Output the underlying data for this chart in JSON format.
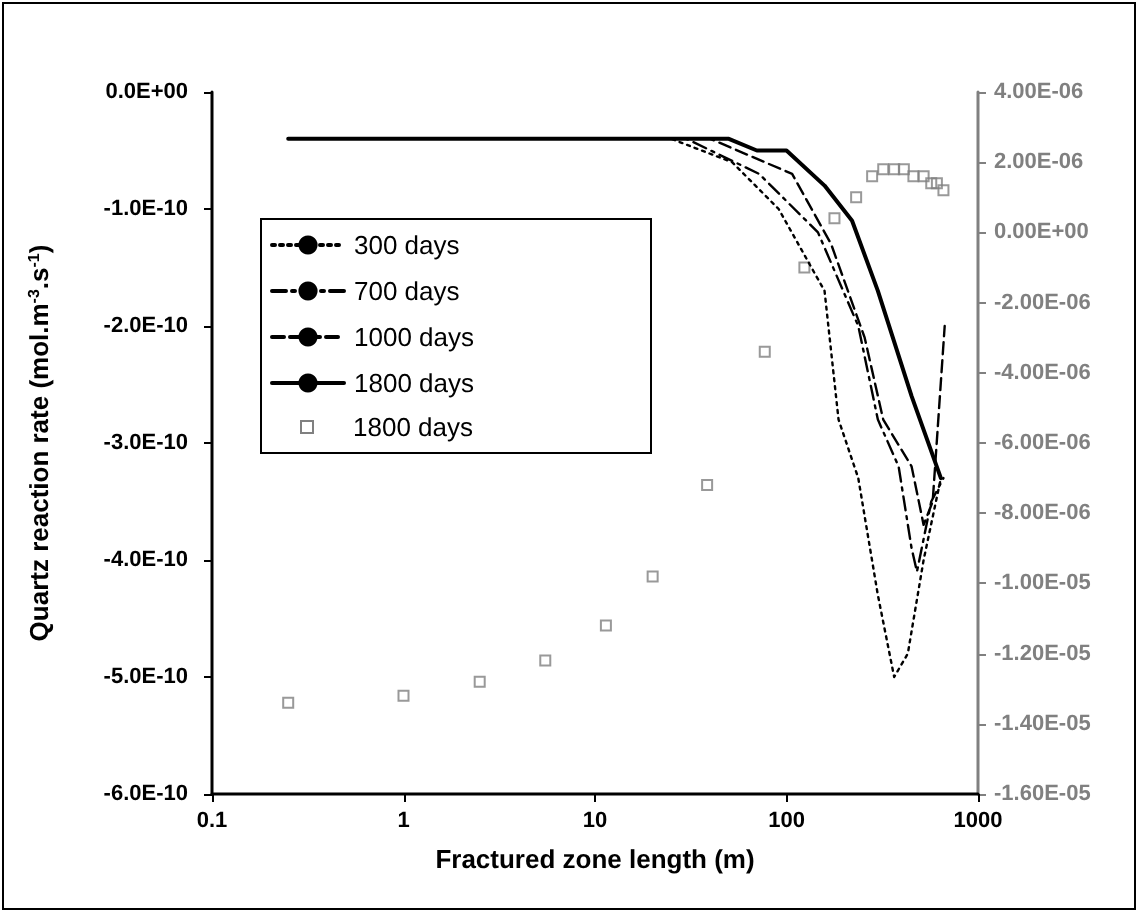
{
  "chart_data": {
    "type": "line",
    "xlabel": "Fractured zone length (m)",
    "ylabel": "Quartz reaction rate (mol.m$^{-3}$.s$^{-1}$)",
    "log": "x",
    "grid": false,
    "legend": "left",
    "xlim": [
      0.1,
      1000
    ],
    "xticks": [
      0.1,
      1,
      10,
      100,
      1000
    ],
    "ylim": [
      -6e-10,
      0
    ],
    "yticks": [
      {
        "value": 0,
        "label": "0.0E+00"
      },
      {
        "value": -1e-10,
        "label": "-1.0E-10"
      },
      {
        "value": -2e-10,
        "label": "-2.0E-10"
      },
      {
        "value": -3e-10,
        "label": "-3.0E-10"
      },
      {
        "value": -4e-10,
        "label": "-4.0E-10"
      },
      {
        "value": -5e-10,
        "label": "-5.0E-10"
      },
      {
        "value": -6e-10,
        "label": "-6.0E-10"
      }
    ],
    "y2lim": [
      -1.6e-05,
      4e-06
    ],
    "y2ticks": [
      {
        "value": 4e-06,
        "label": "4.00E-06"
      },
      {
        "value": 2e-06,
        "label": "2.00E-06"
      },
      {
        "value": 0,
        "label": "0.00E+00"
      },
      {
        "value": -2e-06,
        "label": "-2.00E-06"
      },
      {
        "value": -4e-06,
        "label": "-4.00E-06"
      },
      {
        "value": -6e-06,
        "label": "-6.00E-06"
      },
      {
        "value": -8e-06,
        "label": "-8.00E-06"
      },
      {
        "value": -1e-05,
        "label": "-1.00E-05"
      },
      {
        "value": -1.2e-05,
        "label": "-1.20E-05"
      },
      {
        "value": -1.4e-05,
        "label": "-1.40E-05"
      },
      {
        "value": -1.6e-05,
        "label": "-1.60E-05"
      }
    ],
    "series": [
      {
        "name": "300 days",
        "color": "#000000",
        "line_style": "dotted",
        "marker": "none",
        "x": [
          0.25,
          10,
          25,
          52,
          91,
          158,
          187,
          237,
          300,
          365,
          430,
          520,
          640
        ],
        "values": [
          -4e-11,
          -4e-11,
          -4e-11,
          -6e-11,
          -1e-10,
          -1.7e-10,
          -2.8e-10,
          -3.3e-10,
          -4.3e-10,
          -5e-10,
          -4.8e-10,
          -4e-10,
          -3.3e-10
        ]
      },
      {
        "name": "700 days",
        "color": "#000000",
        "line_style": "dashdot",
        "marker": "none",
        "x": [
          0.25,
          10,
          30,
          72,
          146,
          237,
          300,
          385,
          450,
          480,
          570,
          660
        ],
        "values": [
          -4e-11,
          -4e-11,
          -4e-11,
          -7e-11,
          -1.2e-10,
          -2e-10,
          -2.8e-10,
          -3.2e-10,
          -3.9e-10,
          -4.1e-10,
          -3.5e-10,
          -3.3e-10
        ]
      },
      {
        "name": "1000 days",
        "color": "#000000",
        "line_style": "dashed",
        "marker": "none",
        "x": [
          0.25,
          10,
          40,
          107,
          171,
          256,
          320,
          450,
          520,
          580,
          670
        ],
        "values": [
          -4e-11,
          -4e-11,
          -4e-11,
          -7e-11,
          -1.3e-10,
          -2.1e-10,
          -2.8e-10,
          -3.2e-10,
          -3.7e-10,
          -3.5e-10,
          -2e-10
        ]
      },
      {
        "name": "1800 days",
        "color": "#000000",
        "line_style": "solid",
        "marker": "none",
        "x": [
          0.25,
          10,
          20,
          35,
          50,
          70,
          100,
          158,
          220,
          300,
          450,
          640
        ],
        "values": [
          -4e-11,
          -4e-11,
          -4e-11,
          -4e-11,
          -4e-11,
          -5e-11,
          -5e-11,
          -8e-11,
          -1.1e-10,
          -1.7e-10,
          -2.6e-10,
          -3.3e-10
        ]
      },
      {
        "name": "1800 days",
        "type": "scatter",
        "axis": "y2",
        "color": "#808080",
        "marker": "square",
        "x": [
          0.25,
          1,
          2.5,
          5.5,
          11.4,
          20,
          38.5,
          77,
          124,
          178,
          231,
          280,
          320,
          365,
          410,
          460,
          520,
          570,
          610,
          660
        ],
        "values": [
          -1.34e-05,
          -1.32e-05,
          -1.28e-05,
          -1.22e-05,
          -1.12e-05,
          -9.8e-06,
          -7.2e-06,
          -3.4e-06,
          -1e-06,
          4e-07,
          1e-06,
          1.6e-06,
          1.8e-06,
          1.8e-06,
          1.8e-06,
          1.6e-06,
          1.6e-06,
          1.4e-06,
          1.4e-06,
          1.2e-06
        ]
      }
    ]
  }
}
